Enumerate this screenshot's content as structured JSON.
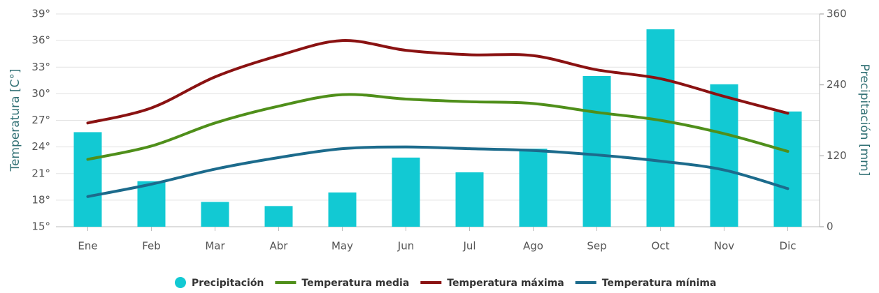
{
  "chart_data": {
    "type": "bar-line",
    "ylabel": "Temperatura [C°]",
    "y2label": "Precipitación [mm]",
    "categories": [
      "Ene",
      "Feb",
      "Mar",
      "Abr",
      "May",
      "Jun",
      "Jul",
      "Ago",
      "Sep",
      "Oct",
      "Nov",
      "Dic"
    ],
    "series": [
      {
        "name": "Precipitación",
        "type": "bar",
        "axis": "y2",
        "color": "#12c9d3",
        "values": [
          160,
          77,
          42,
          35,
          58,
          117,
          92,
          132,
          255,
          334,
          241,
          195
        ]
      },
      {
        "name": "Temperatura media",
        "type": "line",
        "color": "#4f8f1a",
        "values": [
          22.6,
          24.1,
          26.7,
          28.6,
          29.9,
          29.4,
          29.1,
          28.9,
          27.9,
          27.0,
          25.5,
          23.5
        ]
      },
      {
        "name": "Temperatura máxima",
        "type": "line",
        "color": "#8a1212",
        "values": [
          26.7,
          28.4,
          31.9,
          34.3,
          36.0,
          34.9,
          34.4,
          34.3,
          32.7,
          31.7,
          29.7,
          27.8
        ]
      },
      {
        "name": "Temperatura mínima",
        "type": "line",
        "color": "#1c6b8c",
        "values": [
          18.4,
          19.8,
          21.5,
          22.8,
          23.8,
          24.0,
          23.8,
          23.6,
          23.1,
          22.4,
          21.4,
          19.3
        ]
      }
    ],
    "ylim": [
      15,
      39
    ],
    "yticks": [
      {
        "value": 15,
        "label": "15°"
      },
      {
        "value": 18,
        "label": "18°"
      },
      {
        "value": 21,
        "label": "21°"
      },
      {
        "value": 24,
        "label": "24°"
      },
      {
        "value": 27,
        "label": "27°"
      },
      {
        "value": 30,
        "label": "30°"
      },
      {
        "value": 33,
        "label": "33°"
      },
      {
        "value": 36,
        "label": "36°"
      },
      {
        "value": 39,
        "label": "39°"
      }
    ],
    "y2lim": [
      0,
      360
    ],
    "y2ticks": [
      0,
      120,
      240,
      360
    ],
    "grid": true
  }
}
